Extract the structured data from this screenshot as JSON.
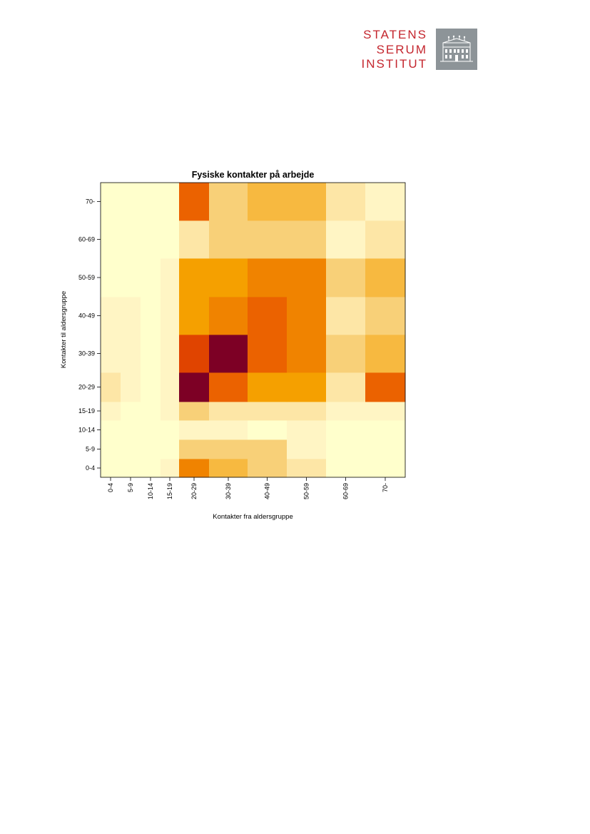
{
  "logo": {
    "lines": [
      "STATENS",
      "SERUM",
      "INSTITUT"
    ],
    "icon": "building-icon",
    "color": "#c4262e"
  },
  "chart_data": {
    "type": "heatmap",
    "title": "Fysiske kontakter på arbejde",
    "xlabel": "Kontakter fra aldersgruppe",
    "ylabel": "Kontakter til aldersgruppe",
    "x_categories": [
      "0-4",
      "5-9",
      "10-14",
      "15-19",
      "20-29",
      "30-39",
      "40-49",
      "50-59",
      "60-69",
      "70-"
    ],
    "y_categories": [
      "0-4",
      "5-9",
      "10-14",
      "15-19",
      "20-29",
      "30-39",
      "40-49",
      "50-59",
      "60-69",
      "70-"
    ],
    "color_scale": [
      "#ffffcc",
      "#fff5c4",
      "#fde6a6",
      "#f8d078",
      "#f7b940",
      "#f5a000",
      "#f08300",
      "#eb6200",
      "#e04400",
      "#7d0025"
    ],
    "values": [
      [
        0,
        0,
        0,
        1,
        6,
        4,
        3,
        2,
        0,
        0
      ],
      [
        0,
        0,
        0,
        0,
        3,
        3,
        3,
        1,
        0,
        0
      ],
      [
        0,
        0,
        0,
        0,
        1,
        1,
        0,
        1,
        0,
        0
      ],
      [
        1,
        0,
        0,
        1,
        3,
        2,
        2,
        2,
        1,
        1
      ],
      [
        2,
        1,
        0,
        1,
        9,
        7,
        5,
        5,
        2,
        7
      ],
      [
        1,
        1,
        0,
        1,
        8,
        9,
        7,
        6,
        3,
        4
      ],
      [
        1,
        1,
        0,
        1,
        5,
        6,
        7,
        6,
        2,
        3
      ],
      [
        0,
        0,
        0,
        1,
        5,
        5,
        6,
        6,
        3,
        4
      ],
      [
        0,
        0,
        0,
        0,
        2,
        3,
        3,
        3,
        1,
        2
      ],
      [
        0,
        0,
        0,
        0,
        7,
        3,
        4,
        4,
        2,
        1
      ]
    ]
  }
}
